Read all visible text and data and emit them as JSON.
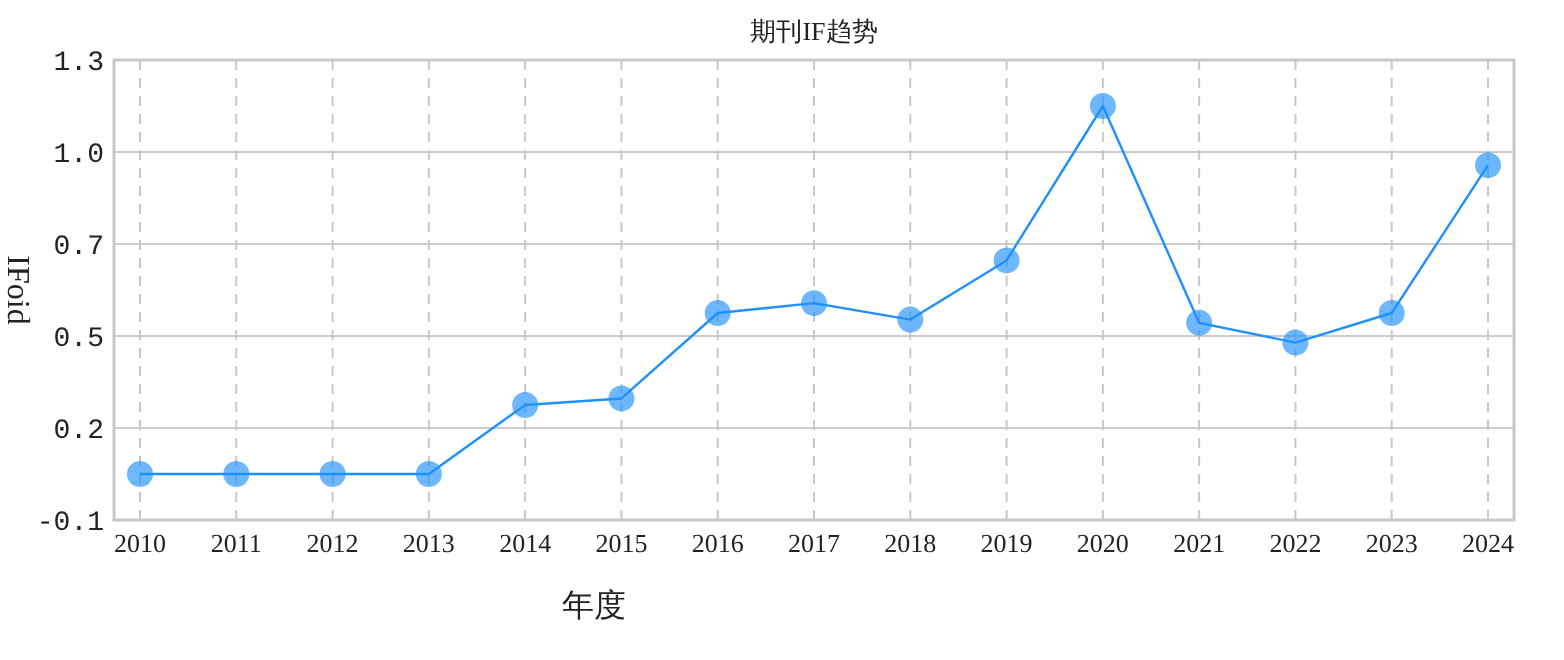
{
  "chart_data": {
    "type": "line",
    "title": "期刊IF趋势",
    "xlabel": "年度",
    "ylabel": "IFoid",
    "categories": [
      "2010",
      "2011",
      "2012",
      "2013",
      "2014",
      "2015",
      "2016",
      "2017",
      "2018",
      "2019",
      "2020",
      "2021",
      "2022",
      "2023",
      "2024"
    ],
    "series": [
      {
        "color": "#1e90ff",
        "values": [
          0.04,
          0.04,
          0.04,
          0.04,
          0.25,
          0.27,
          0.53,
          0.56,
          0.51,
          0.69,
          1.16,
          0.5,
          0.44,
          0.53,
          0.98
        ]
      }
    ],
    "ylim": [
      -0.1,
      1.3
    ],
    "yticks": [
      -0.1,
      {
        "value": 0.18,
        "label": "0.2"
      },
      {
        "value": 0.46,
        "label": "0.5"
      },
      {
        "value": 0.74,
        "label": "0.7"
      },
      {
        "value": 1.02,
        "label": "1.0"
      },
      1.3
    ],
    "grid": true,
    "marker": "circle",
    "line_style": "solid"
  }
}
